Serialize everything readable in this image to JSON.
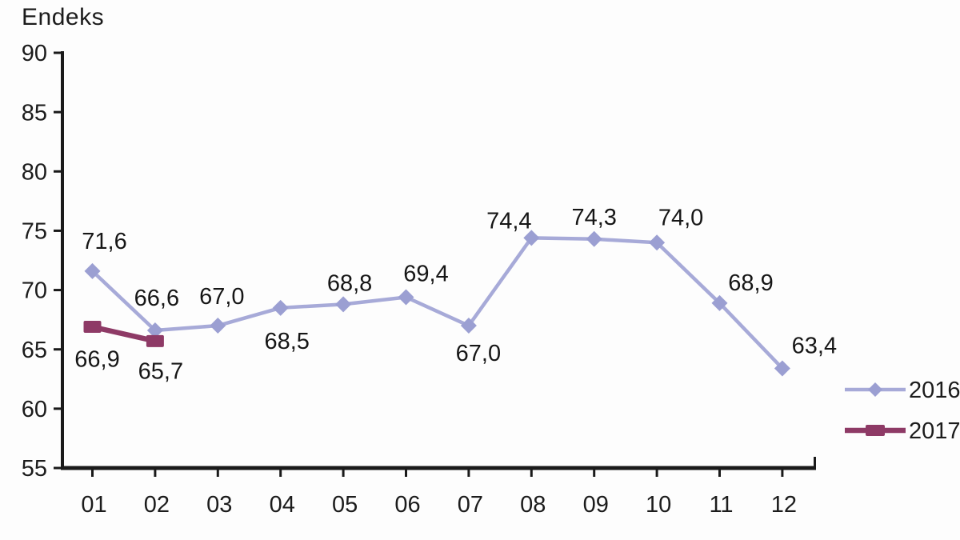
{
  "chart_data": {
    "type": "line",
    "title": "Endeks",
    "categories": [
      "01",
      "02",
      "03",
      "04",
      "05",
      "06",
      "07",
      "08",
      "09",
      "10",
      "11",
      "12"
    ],
    "series": [
      {
        "name": "2016",
        "values": [
          71.6,
          66.6,
          67.0,
          68.5,
          68.8,
          69.4,
          67.0,
          74.4,
          74.3,
          74.0,
          68.9,
          63.4
        ],
        "labels": [
          "71,6",
          "66,6",
          "67,0",
          "68,5",
          "68,8",
          "69,4",
          "67,0",
          "74,4",
          "74,3",
          "74,0",
          "68,9",
          "63,4"
        ],
        "color": "#a7aad8",
        "marker_color": "#9b9fd2",
        "marker": "diamond",
        "line_width": 4.5,
        "label_offsets": [
          [
            15,
            -38
          ],
          [
            2,
            -41
          ],
          [
            5,
            -37
          ],
          [
            8,
            41
          ],
          [
            8,
            -27
          ],
          [
            25,
            -30
          ],
          [
            12,
            34
          ],
          [
            -28,
            -22
          ],
          [
            0,
            -28
          ],
          [
            30,
            -32
          ],
          [
            39,
            -26
          ],
          [
            40,
            -29
          ]
        ]
      },
      {
        "name": "2017",
        "values": [
          66.9,
          65.7
        ],
        "labels": [
          "66,9",
          "65,7"
        ],
        "color": "#8e3a66",
        "marker_color": "#8e3a66",
        "marker": "square",
        "line_width": 6.5,
        "label_offsets": [
          [
            6,
            40
          ],
          [
            7,
            37
          ]
        ]
      }
    ],
    "ylim": [
      55,
      90
    ],
    "ytick_step": 5,
    "xlabel": "",
    "ylabel": "",
    "grid": false,
    "legend_position": "bottom-right",
    "axis_color": "#1a1a1a",
    "text_color": "#1c1c1c"
  }
}
